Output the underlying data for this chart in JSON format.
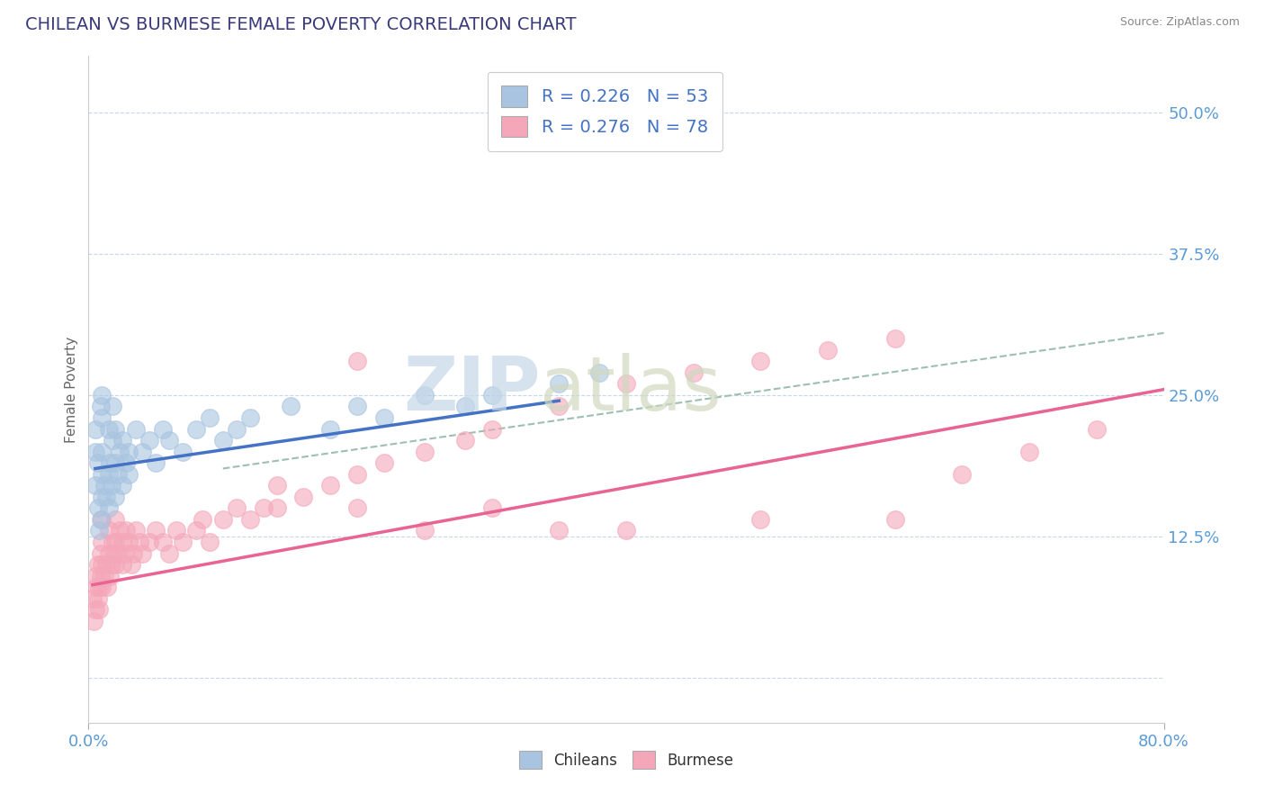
{
  "title": "CHILEAN VS BURMESE FEMALE POVERTY CORRELATION CHART",
  "source_text": "Source: ZipAtlas.com",
  "ylabel": "Female Poverty",
  "xlim": [
    0.0,
    0.8
  ],
  "ylim": [
    -0.04,
    0.55
  ],
  "ytick_positions": [
    0.0,
    0.125,
    0.25,
    0.375,
    0.5
  ],
  "ytick_labels": [
    "",
    "12.5%",
    "25.0%",
    "37.5%",
    "50.0%"
  ],
  "chilean_color": "#a8c4e0",
  "burmese_color": "#f4a7b9",
  "chilean_line_color": "#4472c4",
  "burmese_line_color": "#e86492",
  "dashed_line_color": "#9dbfb0",
  "R_chilean": 0.226,
  "N_chilean": 53,
  "R_burmese": 0.276,
  "N_burmese": 78,
  "legend_label_chilean": "Chileans",
  "legend_label_burmese": "Burmese",
  "watermark_zip": "ZIP",
  "watermark_atlas": "atlas",
  "background_color": "#ffffff",
  "grid_color": "#c8d8e8",
  "chilean_scatter_x": [
    0.005,
    0.005,
    0.005,
    0.007,
    0.007,
    0.008,
    0.009,
    0.009,
    0.01,
    0.01,
    0.01,
    0.01,
    0.01,
    0.012,
    0.013,
    0.015,
    0.015,
    0.015,
    0.016,
    0.017,
    0.018,
    0.018,
    0.02,
    0.02,
    0.02,
    0.022,
    0.023,
    0.025,
    0.025,
    0.028,
    0.03,
    0.03,
    0.035,
    0.04,
    0.045,
    0.05,
    0.055,
    0.06,
    0.07,
    0.08,
    0.09,
    0.1,
    0.11,
    0.12,
    0.15,
    0.18,
    0.2,
    0.22,
    0.25,
    0.28,
    0.3,
    0.35,
    0.38
  ],
  "chilean_scatter_y": [
    0.17,
    0.2,
    0.22,
    0.15,
    0.19,
    0.13,
    0.14,
    0.24,
    0.16,
    0.18,
    0.2,
    0.23,
    0.25,
    0.17,
    0.16,
    0.15,
    0.18,
    0.22,
    0.19,
    0.17,
    0.21,
    0.24,
    0.16,
    0.19,
    0.22,
    0.18,
    0.2,
    0.17,
    0.21,
    0.19,
    0.18,
    0.2,
    0.22,
    0.2,
    0.21,
    0.19,
    0.22,
    0.21,
    0.2,
    0.22,
    0.23,
    0.21,
    0.22,
    0.23,
    0.24,
    0.22,
    0.24,
    0.23,
    0.25,
    0.24,
    0.25,
    0.26,
    0.27
  ],
  "burmese_scatter_x": [
    0.003,
    0.004,
    0.005,
    0.005,
    0.006,
    0.007,
    0.007,
    0.008,
    0.008,
    0.009,
    0.009,
    0.01,
    0.01,
    0.01,
    0.01,
    0.012,
    0.013,
    0.014,
    0.015,
    0.015,
    0.016,
    0.017,
    0.018,
    0.019,
    0.02,
    0.02,
    0.02,
    0.022,
    0.023,
    0.025,
    0.025,
    0.027,
    0.028,
    0.03,
    0.032,
    0.033,
    0.035,
    0.038,
    0.04,
    0.045,
    0.05,
    0.055,
    0.06,
    0.065,
    0.07,
    0.08,
    0.085,
    0.09,
    0.1,
    0.11,
    0.12,
    0.14,
    0.16,
    0.18,
    0.2,
    0.22,
    0.25,
    0.28,
    0.3,
    0.35,
    0.4,
    0.45,
    0.5,
    0.55,
    0.6,
    0.65,
    0.7,
    0.75,
    0.14,
    0.2,
    0.25,
    0.13,
    0.6,
    0.3,
    0.4,
    0.5,
    0.2,
    0.35
  ],
  "burmese_scatter_y": [
    0.07,
    0.05,
    0.06,
    0.09,
    0.08,
    0.07,
    0.1,
    0.06,
    0.08,
    0.09,
    0.11,
    0.08,
    0.1,
    0.12,
    0.14,
    0.09,
    0.1,
    0.08,
    0.11,
    0.13,
    0.09,
    0.1,
    0.12,
    0.11,
    0.1,
    0.12,
    0.14,
    0.11,
    0.13,
    0.1,
    0.12,
    0.11,
    0.13,
    0.12,
    0.1,
    0.11,
    0.13,
    0.12,
    0.11,
    0.12,
    0.13,
    0.12,
    0.11,
    0.13,
    0.12,
    0.13,
    0.14,
    0.12,
    0.14,
    0.15,
    0.14,
    0.15,
    0.16,
    0.17,
    0.18,
    0.19,
    0.2,
    0.21,
    0.22,
    0.24,
    0.26,
    0.27,
    0.28,
    0.29,
    0.3,
    0.18,
    0.2,
    0.22,
    0.17,
    0.15,
    0.13,
    0.15,
    0.14,
    0.15,
    0.13,
    0.14,
    0.28,
    0.13
  ],
  "chilean_line_x": [
    0.005,
    0.35
  ],
  "chilean_line_y": [
    0.185,
    0.245
  ],
  "burmese_line_x": [
    0.003,
    0.8
  ],
  "burmese_line_y": [
    0.082,
    0.255
  ],
  "dashed_line_x": [
    0.1,
    0.8
  ],
  "dashed_line_y": [
    0.185,
    0.305
  ]
}
